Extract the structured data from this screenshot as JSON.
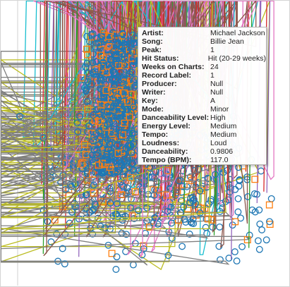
{
  "tooltip": {
    "rows": [
      {
        "label": "Artist:",
        "value": "Michael Jackson"
      },
      {
        "label": "Song:",
        "value": "Billie Jean"
      },
      {
        "label": "Peak:",
        "value": "1"
      },
      {
        "label": "Hit Status:",
        "value": "Hit (20-29 weeks)"
      },
      {
        "label": "Weeks on Charts:",
        "value": "24"
      },
      {
        "label": "Record Label:",
        "value": "1"
      },
      {
        "label": "Producer:",
        "value": "Null"
      },
      {
        "label": "Writer:",
        "value": "Null"
      },
      {
        "label": "Key:",
        "value": "A"
      },
      {
        "label": "Mode:",
        "value": "Minor"
      },
      {
        "label": "Danceability Level:",
        "value": "High"
      },
      {
        "label": "Energy Level:",
        "value": "Medium"
      },
      {
        "label": "Tempo:",
        "value": "Medium"
      },
      {
        "label": "Loudness:",
        "value": "Loud"
      },
      {
        "label": "Danceability:",
        "value": "0.9806"
      },
      {
        "label": "Tempo (BPM):",
        "value": "117.0"
      }
    ]
  }
}
